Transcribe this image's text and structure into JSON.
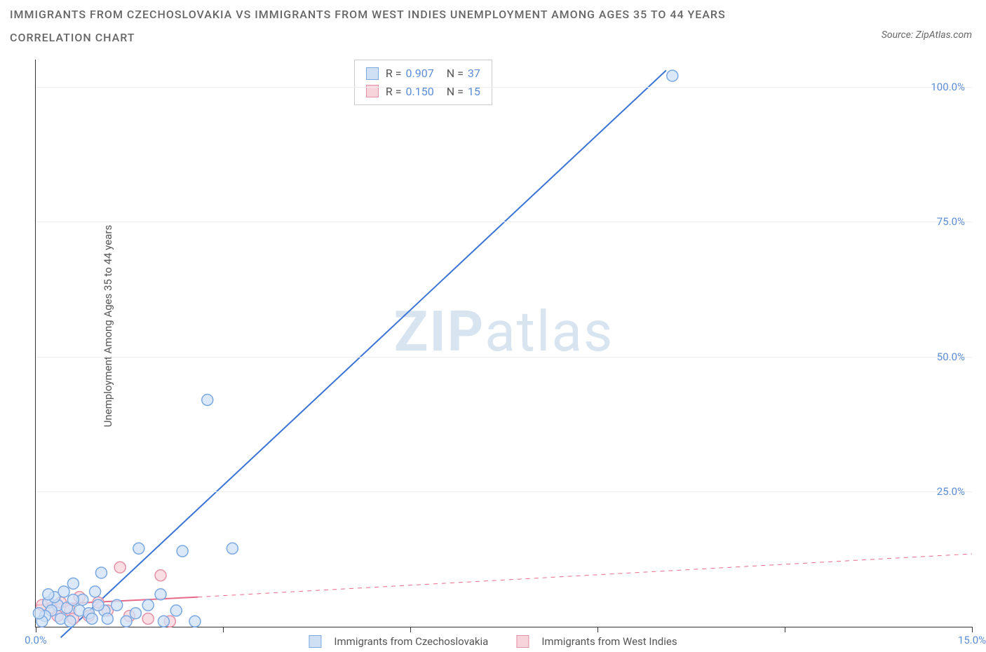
{
  "title": "IMMIGRANTS FROM CZECHOSLOVAKIA VS IMMIGRANTS FROM WEST INDIES UNEMPLOYMENT AMONG AGES 35 TO 44 YEARS",
  "subtitle": "CORRELATION CHART",
  "source_prefix": "Source: ",
  "source_name": "ZipAtlas.com",
  "y_axis_label": "Unemployment Among Ages 35 to 44 years",
  "watermark_bold": "ZIP",
  "watermark_light": "atlas",
  "chart": {
    "type": "scatter",
    "background_color": "#ffffff",
    "grid_color": "#eeeeee",
    "axis_color": "#333333",
    "xlim": [
      0,
      15
    ],
    "ylim": [
      0,
      105
    ],
    "x_ticks": [
      0,
      3,
      6,
      9,
      12,
      15
    ],
    "x_tick_labels": [
      "0.0%",
      "",
      "",
      "",
      "",
      "15.0%"
    ],
    "y_ticks": [
      25,
      50,
      75,
      100
    ],
    "y_tick_labels": [
      "25.0%",
      "50.0%",
      "75.0%",
      "100.0%"
    ],
    "label_color": "#5b8dd6",
    "axis_label_color": "#555555",
    "label_fontsize": 15
  },
  "series": [
    {
      "name": "Immigrants from Czechoslovakia",
      "color_fill": "#cfe0f5",
      "color_stroke": "#7aa8e0",
      "marker_radius": 8,
      "marker_opacity": 0.75,
      "trend_line": {
        "x1": 0.4,
        "y1": -2,
        "x2": 10.1,
        "y2": 103,
        "color": "#3b74d4",
        "width": 2,
        "dash": "none"
      },
      "points": [
        {
          "x": 7.0,
          "y": 103.5
        },
        {
          "x": 10.2,
          "y": 102.0
        },
        {
          "x": 2.75,
          "y": 42.0
        },
        {
          "x": 1.65,
          "y": 14.5
        },
        {
          "x": 2.35,
          "y": 14.0
        },
        {
          "x": 3.15,
          "y": 14.5
        },
        {
          "x": 1.05,
          "y": 10.0
        },
        {
          "x": 0.6,
          "y": 8.0
        },
        {
          "x": 0.95,
          "y": 6.5
        },
        {
          "x": 0.2,
          "y": 4.5
        },
        {
          "x": 0.35,
          "y": 4.0
        },
        {
          "x": 0.25,
          "y": 3.0
        },
        {
          "x": 0.5,
          "y": 3.5
        },
        {
          "x": 0.7,
          "y": 3.0
        },
        {
          "x": 0.85,
          "y": 2.5
        },
        {
          "x": 0.15,
          "y": 2.0
        },
        {
          "x": 0.4,
          "y": 1.5
        },
        {
          "x": 0.55,
          "y": 1.0
        },
        {
          "x": 0.9,
          "y": 1.5
        },
        {
          "x": 1.1,
          "y": 3.0
        },
        {
          "x": 1.3,
          "y": 4.0
        },
        {
          "x": 1.45,
          "y": 1.0
        },
        {
          "x": 1.6,
          "y": 2.5
        },
        {
          "x": 1.8,
          "y": 4.0
        },
        {
          "x": 2.05,
          "y": 1.0
        },
        {
          "x": 2.25,
          "y": 3.0
        },
        {
          "x": 2.55,
          "y": 1.0
        },
        {
          "x": 0.1,
          "y": 1.0
        },
        {
          "x": 0.05,
          "y": 2.5
        },
        {
          "x": 0.75,
          "y": 5.0
        },
        {
          "x": 0.3,
          "y": 5.5
        },
        {
          "x": 0.6,
          "y": 5.0
        },
        {
          "x": 1.15,
          "y": 1.5
        },
        {
          "x": 1.0,
          "y": 4.0
        },
        {
          "x": 2.0,
          "y": 6.0
        },
        {
          "x": 0.45,
          "y": 6.5
        },
        {
          "x": 0.2,
          "y": 6.0
        }
      ]
    },
    {
      "name": "Immigrants from West Indies",
      "color_fill": "#f7d3db",
      "color_stroke": "#e490a5",
      "marker_radius": 8,
      "marker_opacity": 0.75,
      "trend_line_solid": {
        "x1": 0.0,
        "y1": 4.0,
        "x2": 2.6,
        "y2": 5.5,
        "color": "#e86a8a",
        "width": 2
      },
      "trend_line_dash": {
        "x1": 2.6,
        "y1": 5.5,
        "x2": 15.0,
        "y2": 13.5,
        "color": "#e86a8a",
        "width": 1
      },
      "points": [
        {
          "x": 1.35,
          "y": 11.0
        },
        {
          "x": 2.0,
          "y": 9.5
        },
        {
          "x": 0.4,
          "y": 4.5
        },
        {
          "x": 0.55,
          "y": 3.0
        },
        {
          "x": 0.7,
          "y": 5.5
        },
        {
          "x": 0.85,
          "y": 2.0
        },
        {
          "x": 1.0,
          "y": 4.5
        },
        {
          "x": 1.15,
          "y": 3.0
        },
        {
          "x": 0.25,
          "y": 3.5
        },
        {
          "x": 0.35,
          "y": 2.0
        },
        {
          "x": 0.1,
          "y": 4.0
        },
        {
          "x": 1.5,
          "y": 2.0
        },
        {
          "x": 1.8,
          "y": 1.5
        },
        {
          "x": 2.15,
          "y": 1.0
        },
        {
          "x": 0.6,
          "y": 1.5
        }
      ]
    }
  ],
  "stats": [
    {
      "swatch_fill": "#cfe0f5",
      "swatch_border": "#7aa8e0",
      "r_label": "R =",
      "r_value": "0.907",
      "n_label": "N =",
      "n_value": "37"
    },
    {
      "swatch_fill": "#f7d3db",
      "swatch_border": "#e490a5",
      "r_label": "R =",
      "r_value": "0.150",
      "n_label": "N =",
      "n_value": "15"
    }
  ],
  "legend": [
    {
      "swatch_fill": "#cfe0f5",
      "swatch_border": "#7aa8e0",
      "label": "Immigrants from Czechoslovakia"
    },
    {
      "swatch_fill": "#f7d3db",
      "swatch_border": "#e490a5",
      "label": "Immigrants from West Indies"
    }
  ]
}
